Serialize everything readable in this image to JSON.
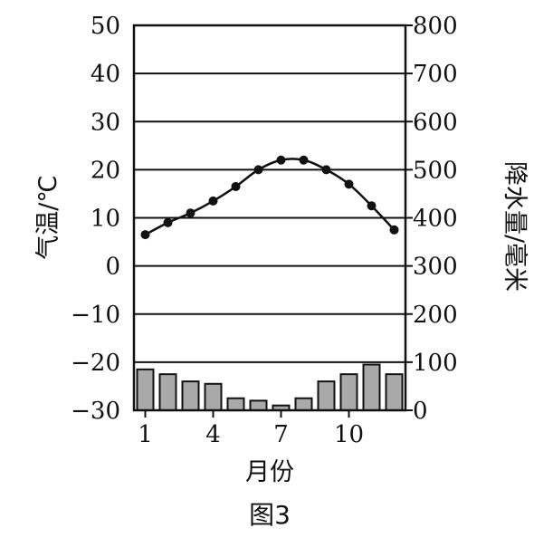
{
  "chart_data": {
    "type": "bar+line",
    "caption": "图3",
    "x": [
      1,
      2,
      3,
      4,
      5,
      6,
      7,
      8,
      9,
      10,
      11,
      12
    ],
    "xticks": [
      "1",
      "4",
      "7",
      "10"
    ],
    "xtick_values": [
      1,
      4,
      7,
      10
    ],
    "xlabel": "月份",
    "ylabel_left": "气温/℃",
    "ylabel_right": "降水量/毫米",
    "ylim_left": [
      -30,
      50
    ],
    "ylim_right": [
      0,
      800
    ],
    "yticks_left": [
      50,
      40,
      30,
      20,
      10,
      0,
      -10,
      -20,
      -30
    ],
    "yticks_left_labels": [
      "50",
      "40",
      "30",
      "20",
      "10",
      "0",
      "−10",
      "−20",
      "−30"
    ],
    "yticks_right": [
      800,
      700,
      600,
      500,
      400,
      300,
      200,
      100,
      0
    ],
    "yticks_right_labels": [
      "800",
      "700",
      "600",
      "500",
      "400",
      "300",
      "200",
      "100",
      "0"
    ],
    "grid": true,
    "series": [
      {
        "kind": "line",
        "axis": "left",
        "values": [
          6.5,
          9,
          11,
          13.5,
          16.5,
          20,
          22,
          22,
          20,
          17,
          12.5,
          7.5
        ]
      },
      {
        "kind": "bar",
        "axis": "right",
        "values": [
          85,
          75,
          60,
          55,
          25,
          20,
          10,
          25,
          60,
          75,
          95,
          75
        ]
      }
    ]
  }
}
